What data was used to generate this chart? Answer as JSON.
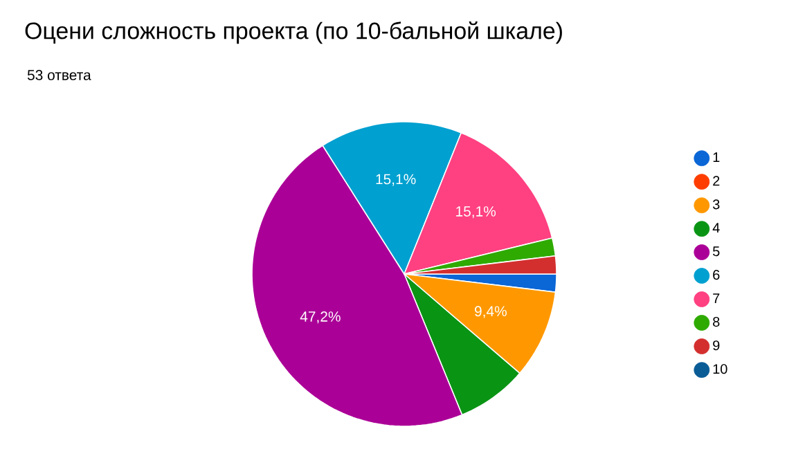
{
  "chart_data": {
    "type": "pie",
    "title": "Оцени сложность проекта (по 10-бальной шкале)",
    "subtitle": "53 ответа",
    "categories": [
      "1",
      "2",
      "3",
      "4",
      "5",
      "6",
      "7",
      "8",
      "9",
      "10"
    ],
    "values": [
      1.9,
      0,
      9.4,
      7.5,
      47.2,
      15.1,
      15.1,
      1.9,
      1.9,
      0
    ],
    "colors": [
      "#0b66d6",
      "#ff3d00",
      "#ff9800",
      "#0a9414",
      "#ab0097",
      "#00a0d0",
      "#ff4081",
      "#2eaa00",
      "#d32f2f",
      "#0a5c96"
    ],
    "value_labels": [
      null,
      null,
      "9,4%",
      null,
      "47,2%",
      "15,1%",
      "15,1%",
      null,
      null,
      null
    ],
    "legend": "right"
  }
}
